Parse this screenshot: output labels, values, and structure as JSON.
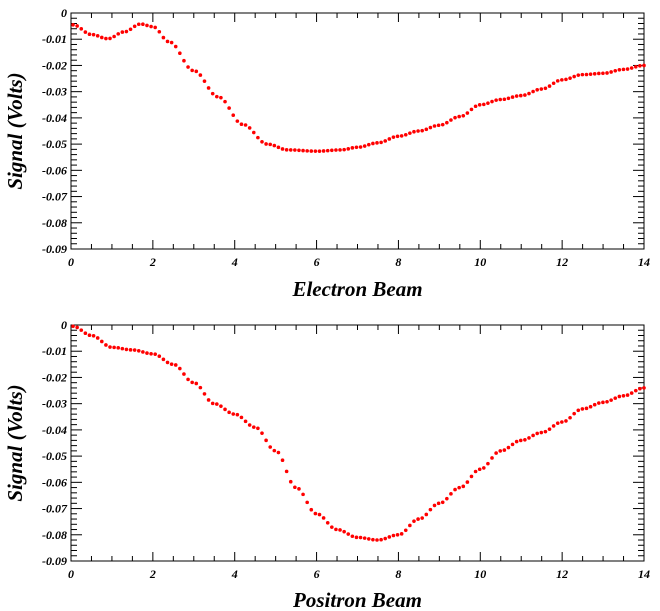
{
  "chart_data": [
    {
      "type": "scatter",
      "title": "",
      "xlabel": "Electron Beam",
      "ylabel": "Signal (Volts)",
      "xlim": [
        0,
        14
      ],
      "ylim": [
        -0.09,
        0
      ],
      "x_ticks": [
        "0",
        "2",
        "4",
        "6",
        "8",
        "10",
        "12",
        "14"
      ],
      "y_ticks": [
        "0",
        "-0.01",
        "-0.02",
        "-0.03",
        "-0.04",
        "-0.05",
        "-0.06",
        "-0.07",
        "-0.08",
        "-0.09"
      ],
      "color": "#ff0000",
      "grid": false,
      "series": [
        {
          "keypoints": [
            [
              0.05,
              -0.0045
            ],
            [
              0.5,
              -0.0082
            ],
            [
              0.9,
              -0.0098
            ],
            [
              1.3,
              -0.0072
            ],
            [
              1.7,
              -0.0042
            ],
            [
              2.0,
              -0.0052
            ],
            [
              2.4,
              -0.011
            ],
            [
              3.0,
              -0.022
            ],
            [
              3.6,
              -0.032
            ],
            [
              4.2,
              -0.0425
            ],
            [
              4.8,
              -0.05
            ],
            [
              5.3,
              -0.0522
            ],
            [
              6.0,
              -0.0527
            ],
            [
              6.6,
              -0.0522
            ],
            [
              7.0,
              -0.0512
            ],
            [
              7.5,
              -0.0495
            ],
            [
              8.0,
              -0.047
            ],
            [
              8.5,
              -0.045
            ],
            [
              9.0,
              -0.0428
            ],
            [
              9.5,
              -0.0395
            ],
            [
              10.0,
              -0.035
            ],
            [
              10.5,
              -0.033
            ],
            [
              11.0,
              -0.0315
            ],
            [
              11.5,
              -0.029
            ],
            [
              12.0,
              -0.0255
            ],
            [
              12.5,
              -0.0235
            ],
            [
              13.0,
              -0.023
            ],
            [
              13.5,
              -0.0215
            ],
            [
              14.0,
              -0.02
            ]
          ]
        }
      ]
    },
    {
      "type": "scatter",
      "title": "",
      "xlabel": "Positron Beam",
      "ylabel": "Signal (Volts)",
      "xlim": [
        0,
        14
      ],
      "ylim": [
        -0.09,
        0
      ],
      "x_ticks": [
        "0",
        "2",
        "4",
        "6",
        "8",
        "10",
        "12",
        "14"
      ],
      "y_ticks": [
        "0",
        "-0.01",
        "-0.02",
        "-0.03",
        "-0.04",
        "-0.05",
        "-0.06",
        "-0.07",
        "-0.08",
        "-0.09"
      ],
      "color": "#ff0000",
      "grid": false,
      "series": [
        {
          "keypoints": [
            [
              0.05,
              -0.0005
            ],
            [
              0.5,
              -0.004
            ],
            [
              1.0,
              -0.0085
            ],
            [
              1.5,
              -0.0095
            ],
            [
              2.0,
              -0.011
            ],
            [
              2.5,
              -0.015
            ],
            [
              3.0,
              -0.022
            ],
            [
              3.5,
              -0.03
            ],
            [
              4.0,
              -0.034
            ],
            [
              4.5,
              -0.039
            ],
            [
              5.0,
              -0.048
            ],
            [
              5.5,
              -0.062
            ],
            [
              6.0,
              -0.072
            ],
            [
              6.5,
              -0.078
            ],
            [
              7.0,
              -0.081
            ],
            [
              7.5,
              -0.082
            ],
            [
              8.0,
              -0.08
            ],
            [
              8.5,
              -0.074
            ],
            [
              9.0,
              -0.068
            ],
            [
              9.5,
              -0.062
            ],
            [
              10.0,
              -0.055
            ],
            [
              10.5,
              -0.048
            ],
            [
              11.0,
              -0.044
            ],
            [
              11.5,
              -0.041
            ],
            [
              12.0,
              -0.037
            ],
            [
              12.5,
              -0.032
            ],
            [
              13.0,
              -0.0295
            ],
            [
              13.5,
              -0.027
            ],
            [
              14.0,
              -0.024
            ]
          ]
        }
      ]
    }
  ]
}
